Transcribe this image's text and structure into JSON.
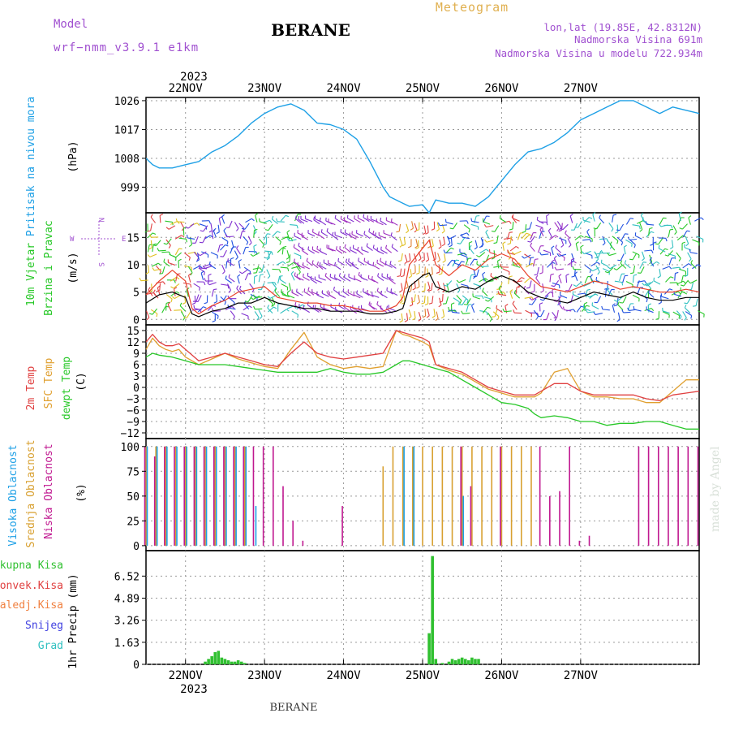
{
  "header": {
    "title": "BERANE",
    "subtitle": "Meteogram",
    "model_label": "Model",
    "model_name": "wrf−nmm_v3.9.1 e1km",
    "lonlat": "lon,lat (19.85E, 42.8312N)",
    "altitude": "Nadmorska Visina 691m",
    "model_altitude": "Nadmorska Visina u modelu 722.934m",
    "footer": "BERANE",
    "credit": "made by Angel"
  },
  "time_axis": {
    "top_year": "2023",
    "bottom_year": "2023",
    "days": [
      "22NOV",
      "23NOV",
      "24NOV",
      "25NOV",
      "26NOV",
      "27NOV"
    ]
  },
  "colors": {
    "pressure": "#1ea0e6",
    "wind_speed": "#000000",
    "wind_gust": "#e8402a",
    "temp2m": "#e04040",
    "sfc_temp": "#e0a030",
    "dewpoint": "#28c828",
    "cloud_high": "#1ea0e6",
    "cloud_mid": "#d8a030",
    "cloud_low": "#c01890",
    "precip": "#30c030"
  },
  "panels": {
    "pressure": {
      "ylabel": "Pritisak na nivou mora",
      "unit": "(hPa)",
      "ticks": [
        999,
        1008,
        1017,
        1026
      ]
    },
    "wind": {
      "ylabel1": "10m Vjetar",
      "ylabel2": "Brzina i Pravac",
      "unit": "(m/s)",
      "ticks": [
        0,
        5,
        10,
        15
      ],
      "compass_w": "W",
      "compass_e": "E",
      "compass_n": "N",
      "compass_s": "S"
    },
    "temperature": {
      "label_temp": "2m Temp",
      "label_sfc": "SFC Temp",
      "label_dew": "dewpt Temp",
      "unit": "(C)",
      "ticks": [
        -12,
        -9,
        -6,
        -3,
        0,
        3,
        6,
        9,
        12,
        15
      ]
    },
    "cloud": {
      "label_high": "Visoka Oblacnost",
      "label_mid": "Srednja Oblacnost",
      "label_low": "Niska Oblacnost",
      "unit": "(%)",
      "ticks": [
        0,
        25,
        50,
        75,
        100
      ]
    },
    "precip": {
      "label_total": "Ukupna Kisa",
      "label_conv": "Konvek.Kisa",
      "label_frz": "Zaledj.Kisa",
      "label_snow": "Snijeg",
      "label_graupel": "Grad",
      "ylabel": "1hr Precip (mm)",
      "ticks": [
        "0",
        "1.63",
        "3.26",
        "4.89",
        "6.52"
      ],
      "legend_colors": [
        "#30c030",
        "#e04040",
        "#f08040",
        "#4040e0",
        "#30c0c0"
      ]
    }
  },
  "chart_data": {
    "type": "line",
    "x_unit": "hours since 22NOV 00 UTC",
    "x_range": [
      -12,
      156
    ],
    "pressure": {
      "x": [
        -12,
        -10,
        -8,
        -4,
        0,
        4,
        8,
        12,
        16,
        20,
        24,
        28,
        32,
        36,
        40,
        44,
        48,
        52,
        56,
        60,
        62,
        66,
        68,
        72,
        74,
        76,
        80,
        84,
        88,
        92,
        96,
        100,
        104,
        108,
        112,
        116,
        120,
        124,
        128,
        132,
        136,
        140,
        144,
        148,
        152,
        156
      ],
      "values": [
        1008,
        1006,
        1005,
        1005,
        1006,
        1007,
        1010,
        1012,
        1015,
        1019,
        1022,
        1024,
        1025,
        1023,
        1019,
        1018.5,
        1017,
        1014,
        1007,
        999,
        996,
        994,
        993,
        993.5,
        991,
        995,
        994,
        994,
        993,
        996,
        1001,
        1006,
        1010,
        1011,
        1013,
        1016,
        1020,
        1022,
        1024,
        1026,
        1026,
        1024,
        1022,
        1024,
        1023,
        1022
      ]
    },
    "wind_speed": {
      "x": [
        -12,
        -8,
        -4,
        0,
        2,
        4,
        8,
        12,
        16,
        20,
        24,
        28,
        32,
        36,
        40,
        44,
        48,
        52,
        56,
        60,
        64,
        66,
        68,
        72,
        74,
        76,
        80,
        84,
        88,
        92,
        96,
        100,
        104,
        108,
        112,
        116,
        120,
        124,
        128,
        132,
        136,
        140,
        144,
        148,
        152,
        156
      ],
      "values": [
        3,
        4.5,
        5,
        4,
        1,
        0.5,
        1.5,
        2,
        3,
        3,
        4,
        3,
        2.5,
        2,
        2,
        1.5,
        1.5,
        1.5,
        1,
        1,
        1.5,
        2,
        6,
        8,
        8.5,
        6,
        5,
        6,
        5.5,
        7,
        8,
        7,
        5,
        4,
        3.5,
        3,
        4,
        5,
        4.5,
        4,
        5,
        4,
        3.5,
        3.5,
        4,
        4
      ]
    },
    "wind_gust": {
      "x": [
        -12,
        -8,
        -4,
        0,
        2,
        4,
        8,
        12,
        16,
        20,
        24,
        28,
        32,
        36,
        40,
        44,
        48,
        52,
        56,
        60,
        64,
        66,
        68,
        72,
        74,
        76,
        80,
        84,
        88,
        92,
        96,
        100,
        104,
        108,
        112,
        116,
        120,
        124,
        128,
        132,
        136,
        140,
        144,
        148,
        152,
        156
      ],
      "values": [
        4.5,
        7,
        9,
        7,
        2,
        1,
        2.5,
        3.5,
        5,
        5.5,
        6,
        4,
        3.5,
        3,
        3,
        2.5,
        2.5,
        2,
        1.5,
        1.5,
        2.5,
        4,
        10,
        13,
        14.5,
        10,
        8,
        10,
        9,
        11,
        12,
        11,
        8,
        6,
        5.5,
        5,
        6,
        7,
        6.5,
        5.5,
        6,
        5.5,
        5,
        5,
        5.5,
        5
      ]
    },
    "temp2m": {
      "x": [
        -12,
        -10,
        -8,
        -6,
        -4,
        -2,
        0,
        4,
        8,
        12,
        16,
        20,
        24,
        28,
        32,
        36,
        40,
        44,
        48,
        52,
        56,
        60,
        64,
        66,
        68,
        72,
        74,
        76,
        80,
        84,
        88,
        92,
        96,
        100,
        104,
        106,
        108,
        112,
        116,
        120,
        124,
        128,
        132,
        136,
        140,
        144,
        148,
        152,
        156
      ],
      "values": [
        12,
        14,
        12,
        11,
        11,
        11.5,
        10,
        7,
        8,
        9,
        8,
        7,
        6,
        5.5,
        9,
        12,
        9,
        8,
        7.5,
        8,
        8.5,
        9,
        15,
        14.5,
        14,
        13,
        12,
        6,
        5,
        4,
        2,
        0,
        -1,
        -2,
        -2,
        -2,
        -1,
        1,
        1,
        -1,
        -2,
        -2,
        -2,
        -2,
        -3,
        -3.5,
        -2,
        -1.5,
        -1
      ]
    },
    "sfc_temp": {
      "x": [
        -12,
        -10,
        -8,
        -6,
        -4,
        -2,
        0,
        4,
        8,
        12,
        16,
        20,
        24,
        28,
        32,
        36,
        40,
        44,
        48,
        52,
        56,
        60,
        64,
        66,
        68,
        72,
        74,
        76,
        80,
        84,
        88,
        92,
        96,
        100,
        104,
        106,
        108,
        112,
        116,
        120,
        124,
        128,
        132,
        136,
        140,
        144,
        148,
        152,
        156
      ],
      "values": [
        10,
        13,
        11,
        10,
        9.5,
        10,
        8,
        6,
        7.5,
        9,
        7.5,
        6.5,
        5.5,
        5,
        10,
        14.5,
        8,
        6,
        5,
        5.5,
        5,
        5.5,
        15,
        14,
        13.5,
        12,
        11,
        6,
        4.5,
        3.5,
        1.5,
        -0.5,
        -1.5,
        -2.5,
        -2.5,
        -2.5,
        -1.5,
        4,
        5,
        -1,
        -2.5,
        -2.5,
        -3,
        -3,
        -4,
        -4,
        -1,
        2,
        2
      ]
    },
    "dewpoint": {
      "x": [
        -12,
        -10,
        -8,
        -4,
        0,
        4,
        8,
        12,
        16,
        20,
        24,
        28,
        32,
        36,
        40,
        44,
        48,
        52,
        56,
        60,
        64,
        66,
        68,
        72,
        76,
        80,
        84,
        88,
        92,
        96,
        100,
        104,
        106,
        108,
        112,
        116,
        120,
        124,
        128,
        132,
        136,
        140,
        144,
        148,
        152,
        156
      ],
      "values": [
        8,
        9,
        8.5,
        8,
        7,
        6,
        6,
        6,
        5.5,
        5,
        4.5,
        4,
        4,
        4,
        4,
        5,
        4,
        3.5,
        3.5,
        4,
        6,
        7,
        7,
        6,
        5,
        4,
        2,
        0,
        -2,
        -4,
        -4.5,
        -5.5,
        -7,
        -8,
        -7.5,
        -8,
        -9,
        -9,
        -10,
        -9.5,
        -9.5,
        -9,
        -9,
        -10,
        -11,
        -11
      ]
    },
    "cloud_high": {
      "x": [
        -12,
        -9,
        -6,
        -3,
        0,
        3,
        6,
        9,
        12,
        15,
        18,
        21,
        24,
        27,
        30,
        33,
        36,
        39,
        42,
        45,
        48,
        51,
        54,
        57,
        60,
        63,
        66,
        69,
        72,
        75,
        78,
        81,
        84,
        87,
        90,
        93,
        96,
        99,
        102,
        105,
        108,
        111,
        114,
        117,
        120,
        123,
        126,
        129,
        132,
        135,
        138,
        141,
        144,
        147,
        150,
        153,
        156
      ],
      "values": [
        100,
        100,
        100,
        100,
        100,
        100,
        100,
        100,
        100,
        100,
        100,
        40,
        0,
        0,
        0,
        0,
        0,
        0,
        0,
        0,
        0,
        0,
        0,
        0,
        0,
        0,
        100,
        100,
        0,
        0,
        0,
        0,
        50,
        0,
        0,
        0,
        0,
        0,
        0,
        0,
        0,
        0,
        0,
        0,
        0,
        0,
        0,
        0,
        0,
        0,
        0,
        0,
        0,
        0,
        0,
        0,
        0
      ]
    },
    "cloud_mid": {
      "x": [
        -12,
        -9,
        -6,
        -3,
        0,
        3,
        6,
        9,
        12,
        15,
        18,
        21,
        24,
        27,
        30,
        33,
        36,
        39,
        42,
        45,
        48,
        51,
        54,
        57,
        60,
        63,
        66,
        69,
        72,
        75,
        78,
        81,
        84,
        87,
        90,
        93,
        96,
        99,
        102,
        105,
        108,
        111,
        114,
        117,
        120,
        123,
        126,
        129,
        132,
        135,
        138,
        141,
        144,
        147,
        150,
        153,
        156
      ],
      "values": [
        100,
        100,
        100,
        100,
        100,
        100,
        100,
        100,
        100,
        100,
        100,
        0,
        0,
        0,
        0,
        0,
        0,
        0,
        0,
        0,
        0,
        0,
        0,
        0,
        80,
        100,
        100,
        100,
        100,
        100,
        100,
        100,
        100,
        100,
        100,
        100,
        100,
        100,
        100,
        100,
        0,
        0,
        0,
        0,
        0,
        0,
        0,
        0,
        0,
        0,
        0,
        0,
        0,
        0,
        0,
        0,
        0
      ]
    },
    "cloud_low": {
      "x": [
        -12,
        -9,
        -6,
        -3,
        0,
        3,
        6,
        9,
        12,
        15,
        18,
        21,
        24,
        27,
        30,
        33,
        36,
        39,
        42,
        45,
        48,
        51,
        54,
        57,
        60,
        63,
        66,
        69,
        72,
        75,
        78,
        81,
        84,
        87,
        90,
        93,
        96,
        99,
        102,
        105,
        108,
        111,
        114,
        117,
        120,
        123,
        126,
        129,
        132,
        135,
        138,
        141,
        144,
        147,
        150,
        153,
        156
      ],
      "values": [
        100,
        90,
        100,
        100,
        100,
        100,
        100,
        100,
        100,
        100,
        100,
        100,
        100,
        100,
        60,
        25,
        5,
        0,
        0,
        0,
        40,
        0,
        0,
        0,
        0,
        0,
        0,
        0,
        0,
        0,
        0,
        0,
        100,
        60,
        0,
        0,
        100,
        0,
        0,
        0,
        100,
        50,
        55,
        100,
        5,
        10,
        0,
        0,
        0,
        0,
        100,
        100,
        100,
        100,
        100,
        100,
        100
      ]
    },
    "precip_total": {
      "x": [
        6,
        7,
        8,
        9,
        10,
        11,
        12,
        13,
        14,
        15,
        16,
        17,
        18,
        74,
        75,
        76,
        78,
        80,
        81,
        82,
        83,
        84,
        85,
        86,
        87,
        88,
        89
      ],
      "values": [
        0.2,
        0.4,
        0.6,
        0.9,
        1.0,
        0.5,
        0.4,
        0.3,
        0.2,
        0.2,
        0.3,
        0.2,
        0.1,
        2.3,
        8.0,
        0.4,
        0.1,
        0.2,
        0.4,
        0.3,
        0.4,
        0.5,
        0.4,
        0.3,
        0.5,
        0.4,
        0.4
      ]
    }
  }
}
